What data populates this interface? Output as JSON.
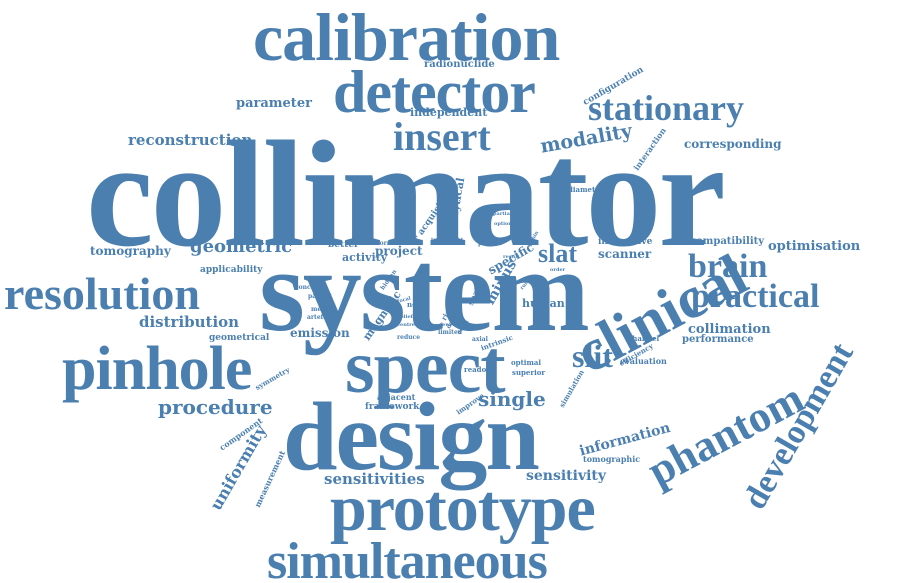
{
  "cloud": {
    "color": "#4a7fb0",
    "words": {
      "collimator": "collimator",
      "system": "system",
      "design": "design",
      "spect": "spect",
      "calibration": "calibration",
      "detector": "detector",
      "prototype": "prototype",
      "simultaneous": "simultaneous",
      "clinical": "clinical",
      "pinhole": "pinhole",
      "resolution": "resolution",
      "insert": "insert",
      "stationary": "stationary",
      "phantom": "phantom",
      "development": "development",
      "practical": "practical",
      "brain": "brain",
      "slit": "slit",
      "single": "single",
      "modality": "modality",
      "geometric": "geometric",
      "procedure": "procedure",
      "distribution": "distribution",
      "reconstruction": "reconstruction",
      "tomography": "tomography",
      "parameter": "parameter",
      "slat": "slat",
      "information": "information",
      "uniformity": "uniformity",
      "sensitivities": "sensitivities",
      "sensitivity": "sensitivity",
      "collimation": "collimation",
      "corresponding": "corresponding",
      "independent": "independent",
      "radionuclide": "radionuclide",
      "configuration": "configuration",
      "optimisation": "optimisation",
      "compatibility": "compatibility",
      "scanner": "scanner",
      "insensitive": "insensitive",
      "performance": "performance",
      "emission": "emission",
      "human": "human",
      "project": "project",
      "activity": "activity",
      "better": "better",
      "analytical": "analytical",
      "acquisition": "acquisition",
      "applicability": "applicability",
      "geometrical": "geometrical",
      "minus": "minus",
      "specific": "specific",
      "magnetic": "magnetic",
      "framework": "framework",
      "adjacent": "adjacent",
      "tomographic": "tomographic",
      "measurement": "measurement",
      "component": "component",
      "interaction": "interaction",
      "diameter": "diameter",
      "evaluation": "evaluation",
      "efficiency": "efficiency",
      "channel": "channel",
      "symmetry": "symmetry",
      "readout": "readout",
      "superior": "superior",
      "optimal": "optimal",
      "improve": "improve",
      "simulation": "simulation",
      "concept": "concept",
      "patient": "patient",
      "method": "method",
      "artefact": "artefact",
      "uniform": "uniform",
      "define": "define",
      "target": "target",
      "sight": "sight",
      "photon": "photon",
      "partial": "partial",
      "option": "option",
      "noise": "noise",
      "hidden": "hidden",
      "ring": "ring",
      "span": "span",
      "axial": "axial",
      "result": "result",
      "intrinsic": "intrinsic",
      "limited": "limited",
      "reduce": "reduce",
      "depth": "depth",
      "data": "data",
      "rule": "rule",
      "focal": "focal",
      "fewer": "fewer",
      "centre": "centre",
      "belief": "belief",
      "order": "order",
      "within": "within",
      "field": "field"
    }
  }
}
